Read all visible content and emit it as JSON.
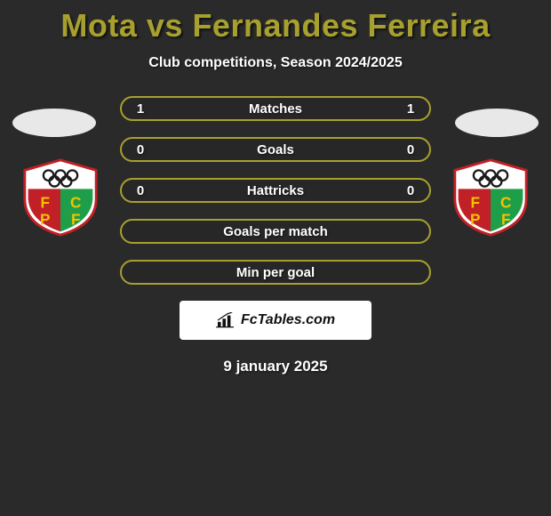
{
  "title": "Mota vs Fernandes Ferreira",
  "title_color": "#a8a02e",
  "subtitle": "Club competitions, Season 2024/2025",
  "accent_border": "#a8a02e",
  "background_color": "#2a2a2a",
  "rows": [
    {
      "left": "1",
      "label": "Matches",
      "right": "1"
    },
    {
      "left": "0",
      "label": "Goals",
      "right": "0"
    },
    {
      "left": "0",
      "label": "Hattricks",
      "right": "0"
    },
    {
      "left": "",
      "label": "Goals per match",
      "right": ""
    },
    {
      "left": "",
      "label": "Min per goal",
      "right": ""
    }
  ],
  "club_badge": {
    "shield_fill": "#ffffff",
    "shield_stroke": "#c02026",
    "left_panel": "#c02026",
    "right_panel": "#1e9e49",
    "rings_color": "#1a1a1a",
    "letters": "FCPF",
    "letter_color": "#f2c200"
  },
  "footer_brand": "FcTables.com",
  "date": "9 january 2025"
}
